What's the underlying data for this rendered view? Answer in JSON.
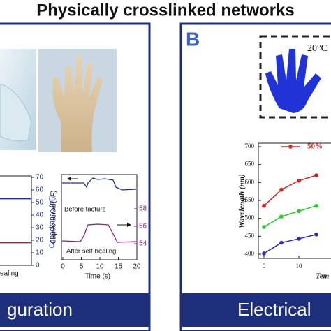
{
  "header": {
    "title": "Physically crosslinked networks"
  },
  "panel_b": {
    "label": "B",
    "photo_label": "20°C"
  },
  "capacitance_chart": {
    "y_label": "Capacitance (pF)",
    "yticks": [
      0,
      10,
      20,
      30,
      40,
      50,
      60,
      70
    ],
    "ylim": [
      0,
      70
    ],
    "series": [
      {
        "color": "#1f2f8f",
        "value": 53
      },
      {
        "color": "#b22222",
        "value": 18
      }
    ],
    "legend_fragment": "ealing"
  },
  "inset_chart": {
    "y_label": "Capacitance (pF)",
    "yticks": [
      54,
      56,
      58
    ],
    "xticks": [
      0,
      5,
      10,
      15,
      20
    ],
    "x_label": "Time (s)",
    "annotations": [
      "Before facture",
      "After self-healing"
    ]
  },
  "wavelength_chart": {
    "y_label": "Wavelength (nm)",
    "x_label_fragment": "Tem",
    "ylim": [
      400,
      700
    ],
    "yticks": [
      400,
      450,
      500,
      550,
      600,
      650,
      700
    ],
    "xticks": [
      0,
      10
    ],
    "x": [
      0,
      5,
      10,
      15
    ],
    "series": [
      {
        "name": "50%",
        "color": "#d62020",
        "values": [
          535,
          580,
          605,
          620
        ]
      },
      {
        "color": "#2ec82e",
        "values": [
          476,
          505,
          520,
          535
        ]
      },
      {
        "color": "#2a2ab8",
        "values": [
          402,
          432,
          443,
          455
        ]
      }
    ]
  },
  "footer": {
    "left": "guration",
    "right": "Electrical"
  }
}
